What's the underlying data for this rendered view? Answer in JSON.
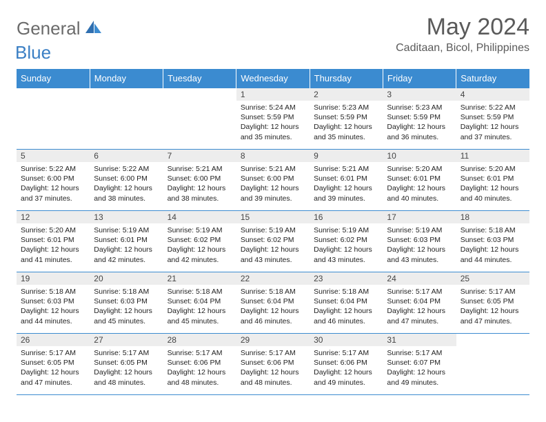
{
  "logo": {
    "general": "General",
    "blue": "Blue"
  },
  "title": "May 2024",
  "location": "Caditaan, Bicol, Philippines",
  "colors": {
    "header_bg": "#3b8bd0",
    "header_text": "#ffffff",
    "daynum_bg": "#ededed",
    "border": "#3b8bd0",
    "logo_general": "#6b6b6b",
    "logo_blue": "#3a7fc4",
    "title_color": "#5a5a5a"
  },
  "weekdays": [
    "Sunday",
    "Monday",
    "Tuesday",
    "Wednesday",
    "Thursday",
    "Friday",
    "Saturday"
  ],
  "weeks": [
    [
      {
        "day": "",
        "lines": []
      },
      {
        "day": "",
        "lines": []
      },
      {
        "day": "",
        "lines": []
      },
      {
        "day": "1",
        "lines": [
          "Sunrise: 5:24 AM",
          "Sunset: 5:59 PM",
          "Daylight: 12 hours",
          "and 35 minutes."
        ]
      },
      {
        "day": "2",
        "lines": [
          "Sunrise: 5:23 AM",
          "Sunset: 5:59 PM",
          "Daylight: 12 hours",
          "and 35 minutes."
        ]
      },
      {
        "day": "3",
        "lines": [
          "Sunrise: 5:23 AM",
          "Sunset: 5:59 PM",
          "Daylight: 12 hours",
          "and 36 minutes."
        ]
      },
      {
        "day": "4",
        "lines": [
          "Sunrise: 5:22 AM",
          "Sunset: 5:59 PM",
          "Daylight: 12 hours",
          "and 37 minutes."
        ]
      }
    ],
    [
      {
        "day": "5",
        "lines": [
          "Sunrise: 5:22 AM",
          "Sunset: 6:00 PM",
          "Daylight: 12 hours",
          "and 37 minutes."
        ]
      },
      {
        "day": "6",
        "lines": [
          "Sunrise: 5:22 AM",
          "Sunset: 6:00 PM",
          "Daylight: 12 hours",
          "and 38 minutes."
        ]
      },
      {
        "day": "7",
        "lines": [
          "Sunrise: 5:21 AM",
          "Sunset: 6:00 PM",
          "Daylight: 12 hours",
          "and 38 minutes."
        ]
      },
      {
        "day": "8",
        "lines": [
          "Sunrise: 5:21 AM",
          "Sunset: 6:00 PM",
          "Daylight: 12 hours",
          "and 39 minutes."
        ]
      },
      {
        "day": "9",
        "lines": [
          "Sunrise: 5:21 AM",
          "Sunset: 6:01 PM",
          "Daylight: 12 hours",
          "and 39 minutes."
        ]
      },
      {
        "day": "10",
        "lines": [
          "Sunrise: 5:20 AM",
          "Sunset: 6:01 PM",
          "Daylight: 12 hours",
          "and 40 minutes."
        ]
      },
      {
        "day": "11",
        "lines": [
          "Sunrise: 5:20 AM",
          "Sunset: 6:01 PM",
          "Daylight: 12 hours",
          "and 40 minutes."
        ]
      }
    ],
    [
      {
        "day": "12",
        "lines": [
          "Sunrise: 5:20 AM",
          "Sunset: 6:01 PM",
          "Daylight: 12 hours",
          "and 41 minutes."
        ]
      },
      {
        "day": "13",
        "lines": [
          "Sunrise: 5:19 AM",
          "Sunset: 6:01 PM",
          "Daylight: 12 hours",
          "and 42 minutes."
        ]
      },
      {
        "day": "14",
        "lines": [
          "Sunrise: 5:19 AM",
          "Sunset: 6:02 PM",
          "Daylight: 12 hours",
          "and 42 minutes."
        ]
      },
      {
        "day": "15",
        "lines": [
          "Sunrise: 5:19 AM",
          "Sunset: 6:02 PM",
          "Daylight: 12 hours",
          "and 43 minutes."
        ]
      },
      {
        "day": "16",
        "lines": [
          "Sunrise: 5:19 AM",
          "Sunset: 6:02 PM",
          "Daylight: 12 hours",
          "and 43 minutes."
        ]
      },
      {
        "day": "17",
        "lines": [
          "Sunrise: 5:19 AM",
          "Sunset: 6:03 PM",
          "Daylight: 12 hours",
          "and 43 minutes."
        ]
      },
      {
        "day": "18",
        "lines": [
          "Sunrise: 5:18 AM",
          "Sunset: 6:03 PM",
          "Daylight: 12 hours",
          "and 44 minutes."
        ]
      }
    ],
    [
      {
        "day": "19",
        "lines": [
          "Sunrise: 5:18 AM",
          "Sunset: 6:03 PM",
          "Daylight: 12 hours",
          "and 44 minutes."
        ]
      },
      {
        "day": "20",
        "lines": [
          "Sunrise: 5:18 AM",
          "Sunset: 6:03 PM",
          "Daylight: 12 hours",
          "and 45 minutes."
        ]
      },
      {
        "day": "21",
        "lines": [
          "Sunrise: 5:18 AM",
          "Sunset: 6:04 PM",
          "Daylight: 12 hours",
          "and 45 minutes."
        ]
      },
      {
        "day": "22",
        "lines": [
          "Sunrise: 5:18 AM",
          "Sunset: 6:04 PM",
          "Daylight: 12 hours",
          "and 46 minutes."
        ]
      },
      {
        "day": "23",
        "lines": [
          "Sunrise: 5:18 AM",
          "Sunset: 6:04 PM",
          "Daylight: 12 hours",
          "and 46 minutes."
        ]
      },
      {
        "day": "24",
        "lines": [
          "Sunrise: 5:17 AM",
          "Sunset: 6:04 PM",
          "Daylight: 12 hours",
          "and 47 minutes."
        ]
      },
      {
        "day": "25",
        "lines": [
          "Sunrise: 5:17 AM",
          "Sunset: 6:05 PM",
          "Daylight: 12 hours",
          "and 47 minutes."
        ]
      }
    ],
    [
      {
        "day": "26",
        "lines": [
          "Sunrise: 5:17 AM",
          "Sunset: 6:05 PM",
          "Daylight: 12 hours",
          "and 47 minutes."
        ]
      },
      {
        "day": "27",
        "lines": [
          "Sunrise: 5:17 AM",
          "Sunset: 6:05 PM",
          "Daylight: 12 hours",
          "and 48 minutes."
        ]
      },
      {
        "day": "28",
        "lines": [
          "Sunrise: 5:17 AM",
          "Sunset: 6:06 PM",
          "Daylight: 12 hours",
          "and 48 minutes."
        ]
      },
      {
        "day": "29",
        "lines": [
          "Sunrise: 5:17 AM",
          "Sunset: 6:06 PM",
          "Daylight: 12 hours",
          "and 48 minutes."
        ]
      },
      {
        "day": "30",
        "lines": [
          "Sunrise: 5:17 AM",
          "Sunset: 6:06 PM",
          "Daylight: 12 hours",
          "and 49 minutes."
        ]
      },
      {
        "day": "31",
        "lines": [
          "Sunrise: 5:17 AM",
          "Sunset: 6:07 PM",
          "Daylight: 12 hours",
          "and 49 minutes."
        ]
      },
      {
        "day": "",
        "lines": []
      }
    ]
  ]
}
